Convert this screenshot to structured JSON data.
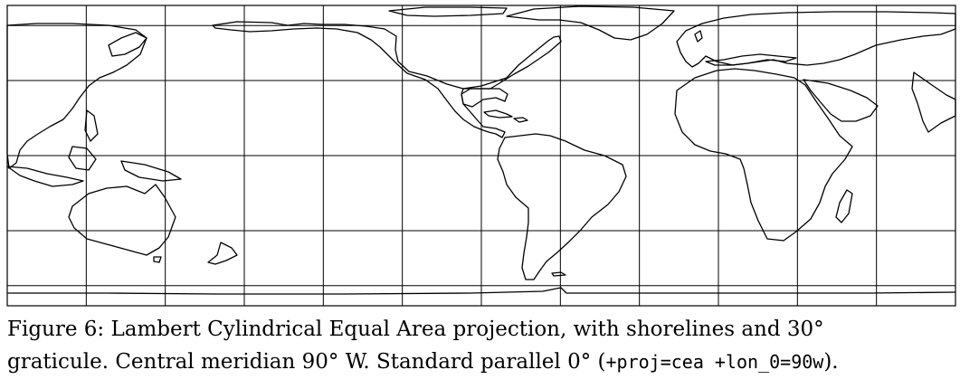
{
  "figure": {
    "caption_line1": "Figure 6: Lambert Cylindrical Equal Area projection, with shorelines and 30°",
    "caption_line2_prefix": "graticule. Central meridian 90° W. Standard parallel 0° (",
    "caption_code": "+proj=cea +lon_0=90w",
    "caption_line2_suffix": ")."
  },
  "map": {
    "projection": "Lambert Cylindrical Equal Area",
    "proj_string": "+proj=cea +lon_0=90w",
    "central_meridian": "90° W",
    "standard_parallel": "0°",
    "graticule_spacing_deg": 30,
    "meridians_deg": [
      120,
      150,
      180,
      -150,
      -120,
      -90,
      -60,
      -30,
      0,
      30,
      60
    ],
    "parallels_deg": [
      60,
      30,
      0,
      -30,
      -60
    ],
    "line_color": "#000000",
    "background": "#ffffff"
  }
}
